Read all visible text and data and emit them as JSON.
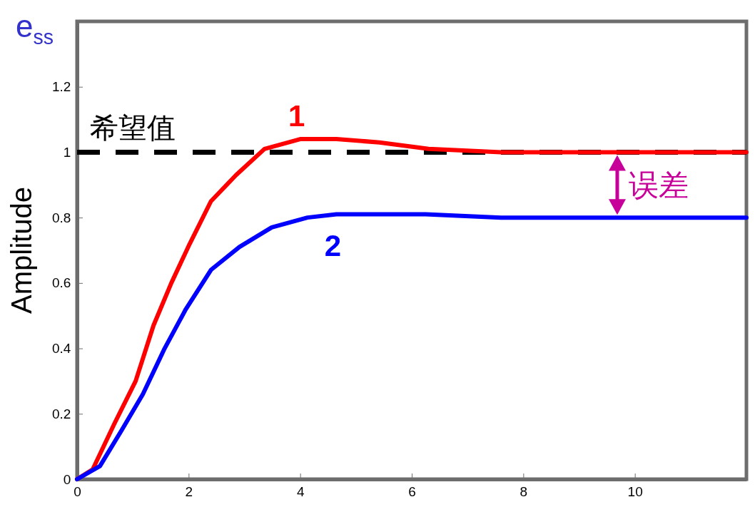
{
  "chart_data": {
    "type": "line",
    "ylabel": "Amplitude",
    "xlim": [
      0,
      12
    ],
    "xticks": [
      0,
      2,
      4,
      6,
      8,
      10
    ],
    "ylim": [
      0,
      1.4
    ],
    "yticks": [
      0,
      0.2,
      0.4,
      0.6,
      0.8,
      1,
      1.2
    ],
    "grid": false,
    "legend": false,
    "marker": "none",
    "line_style": "solid",
    "series": [
      {
        "name": "1",
        "color": "#ff0000",
        "x": [
          0,
          0.28,
          0.67,
          1.05,
          1.37,
          1.69,
          2.02,
          2.4,
          2.85,
          3.36,
          4.0,
          4.65,
          5.42,
          6.3,
          7.6,
          12
        ],
        "values": [
          0,
          0.03,
          0.17,
          0.3,
          0.47,
          0.6,
          0.72,
          0.85,
          0.93,
          1.01,
          1.04,
          1.04,
          1.03,
          1.01,
          1.0,
          1.0
        ]
      },
      {
        "name": "2",
        "color": "#0000ff",
        "x": [
          0,
          0.41,
          0.8,
          1.18,
          1.57,
          1.95,
          2.4,
          2.91,
          3.49,
          4.13,
          4.65,
          6.25,
          7.6,
          9.5,
          12
        ],
        "values": [
          0,
          0.04,
          0.15,
          0.26,
          0.4,
          0.52,
          0.64,
          0.71,
          0.77,
          0.8,
          0.81,
          0.81,
          0.8,
          0.8,
          0.8
        ]
      }
    ],
    "ref_lines": [
      {
        "axis": "y",
        "value": 1,
        "label": "希望值",
        "color": "#000000",
        "line_style": "dashed"
      }
    ],
    "annotations": [
      "e$_{ss}$",
      "误差"
    ]
  }
}
